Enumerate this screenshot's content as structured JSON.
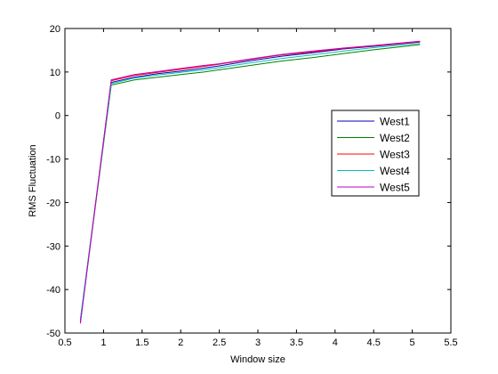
{
  "chart_data": {
    "type": "line",
    "xlabel": "Window size",
    "ylabel": "RMS Fluctuation",
    "xlim": [
      0.5,
      5.5
    ],
    "ylim": [
      -50,
      20
    ],
    "xticks": [
      "0.5",
      "1",
      "1.5",
      "2",
      "2.5",
      "3",
      "3.5",
      "4",
      "4.5",
      "5",
      "5.5"
    ],
    "yticks": [
      "20",
      "10",
      "0",
      "-10",
      "-20",
      "-30",
      "-40",
      "-50"
    ],
    "grid": false,
    "legend_position": "right",
    "series": [
      {
        "name": "West1",
        "color": "#0000bf",
        "x": [
          0.7,
          1.1,
          1.4,
          1.7,
          2.0,
          2.3,
          2.5,
          2.9,
          3.3,
          3.7,
          4.1,
          4.5,
          5.1
        ],
        "y": [
          -47,
          7.6,
          8.8,
          9.6,
          10.2,
          10.9,
          11.4,
          12.6,
          13.6,
          14.4,
          15.3,
          15.9,
          16.9
        ]
      },
      {
        "name": "West2",
        "color": "#008000",
        "x": [
          0.7,
          1.1,
          1.4,
          1.7,
          2.0,
          2.3,
          2.5,
          2.9,
          3.3,
          3.7,
          4.1,
          4.5,
          5.1
        ],
        "y": [
          -47.2,
          7.0,
          8.2,
          8.8,
          9.4,
          10.0,
          10.5,
          11.5,
          12.5,
          13.3,
          14.2,
          15.1,
          16.3
        ]
      },
      {
        "name": "West3",
        "color": "#ff0000",
        "x": [
          0.7,
          1.1,
          1.4,
          1.7,
          2.0,
          2.3,
          2.5,
          2.9,
          3.3,
          3.7,
          4.1,
          4.5,
          5.1
        ],
        "y": [
          -47.5,
          8.0,
          9.2,
          9.9,
          10.6,
          11.3,
          11.8,
          12.9,
          13.9,
          14.6,
          15.4,
          16.0,
          17.0
        ]
      },
      {
        "name": "West4",
        "color": "#00bfbf",
        "x": [
          0.7,
          1.1,
          1.4,
          1.7,
          2.0,
          2.3,
          2.5,
          2.9,
          3.3,
          3.7,
          4.1,
          4.5,
          5.1
        ],
        "y": [
          -46.8,
          7.3,
          8.6,
          9.3,
          9.9,
          10.5,
          11.0,
          12.1,
          13.1,
          13.9,
          14.8,
          15.6,
          16.6
        ]
      },
      {
        "name": "West5",
        "color": "#bf00bf",
        "x": [
          0.7,
          1.1,
          1.4,
          1.7,
          2.0,
          2.3,
          2.5,
          2.9,
          3.3,
          3.7,
          4.1,
          4.5,
          5.1
        ],
        "y": [
          -47.8,
          8.2,
          9.4,
          10.1,
          10.8,
          11.5,
          11.9,
          13.0,
          14.0,
          14.8,
          15.5,
          16.1,
          17.1
        ]
      }
    ]
  }
}
